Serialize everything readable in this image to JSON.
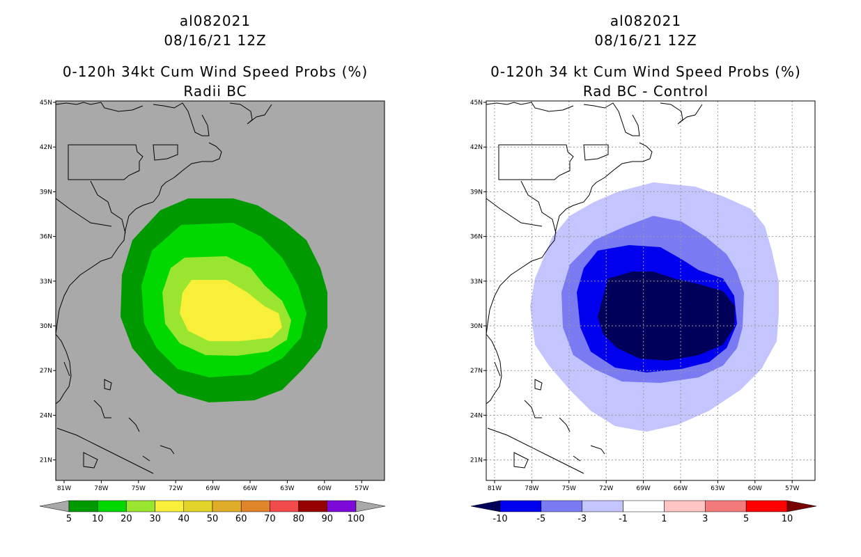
{
  "left": {
    "storm_id": "al082021",
    "datetime": "08/16/21 12Z",
    "product": "0-120h 34kt Cum Wind Speed Probs (%)",
    "subtitle": "Radii BC",
    "colors": {
      "background": "#a9a9a9",
      "c5": "#009a00",
      "c10": "#00d800",
      "c20": "#9ae52f",
      "c30": "#f7ef38"
    },
    "colorbar": {
      "labels": [
        "5",
        "10",
        "20",
        "30",
        "40",
        "50",
        "60",
        "70",
        "80",
        "90",
        "100"
      ],
      "colors": [
        "#009a00",
        "#00d800",
        "#9ae52f",
        "#f7ef38",
        "#e3d42a",
        "#e0ad2a",
        "#e0852a",
        "#f24b4b",
        "#960000",
        "#7e0ad8"
      ],
      "under": "#a9a9a9",
      "over": "#a9a9a9"
    }
  },
  "right": {
    "storm_id": "al082021",
    "datetime": "08/16/21 12Z",
    "product": "0-120h 34 kt Cum Wind Speed Probs (%)",
    "subtitle": "Rad BC - Control",
    "colors": {
      "background": "#ffffff",
      "n1": "#c4c4ff",
      "n3": "#7a7af2",
      "n5": "#0000ef",
      "n10": "#00005a"
    },
    "colorbar": {
      "labels": [
        "-10",
        "-5",
        "-3",
        "-1",
        "1",
        "3",
        "5",
        "10"
      ],
      "colors": [
        "#0000ef",
        "#7a7af2",
        "#c4c4ff",
        "#ffffff",
        "#ffc4c4",
        "#f27a7a",
        "#ff0000"
      ],
      "under": "#00005a",
      "over": "#780000"
    }
  },
  "axes": {
    "lat_labels": [
      "45N",
      "42N",
      "39N",
      "36N",
      "33N",
      "30N",
      "27N",
      "24N",
      "21N"
    ],
    "lon_labels": [
      "81W",
      "78W",
      "75W",
      "72W",
      "69W",
      "66W",
      "63W",
      "60W",
      "57W"
    ]
  }
}
